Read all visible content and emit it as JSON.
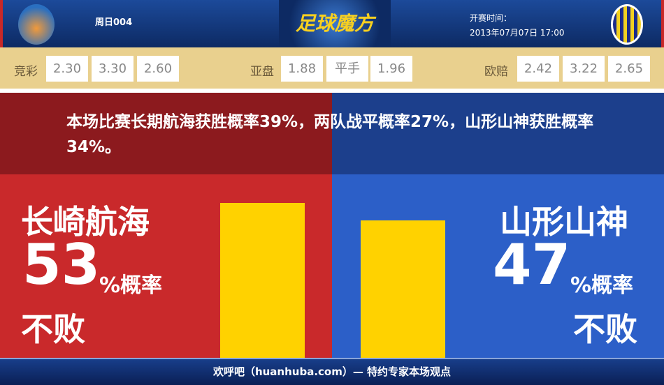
{
  "header": {
    "match_no": "周日004",
    "brand": "足球魔方",
    "kickoff_label": "开赛时间：",
    "kickoff_time": "2013年07月07日 17:00",
    "home_logo_icon": "v-varen-nagasaki-crest",
    "away_logo_icon": "montedio-yamagata-crest"
  },
  "odds": {
    "jingcai": {
      "label": "竞彩",
      "values": [
        "2.30",
        "3.30",
        "2.60"
      ]
    },
    "yapan": {
      "label": "亚盘",
      "values": [
        "1.88",
        "平手",
        "1.96"
      ]
    },
    "oupei": {
      "label": "欧赔",
      "values": [
        "2.42",
        "3.22",
        "2.65"
      ]
    }
  },
  "summary": "本场比赛长期航海获胜概率39%，两队战平概率27%，山形山神获胜概率34%。",
  "home": {
    "name": "长崎航海",
    "percent": 53,
    "percent_text": "53",
    "unit": "%概率",
    "outcome": "不败",
    "color": "#c9292b"
  },
  "away": {
    "name": "山形山神",
    "percent": 47,
    "percent_text": "47",
    "unit": "%概率",
    "outcome": "不败",
    "color": "#2c5fc8"
  },
  "bar_color": "#ffd200",
  "footer": "欢呼吧（huanhuba.com）— 特约专家本场观点"
}
